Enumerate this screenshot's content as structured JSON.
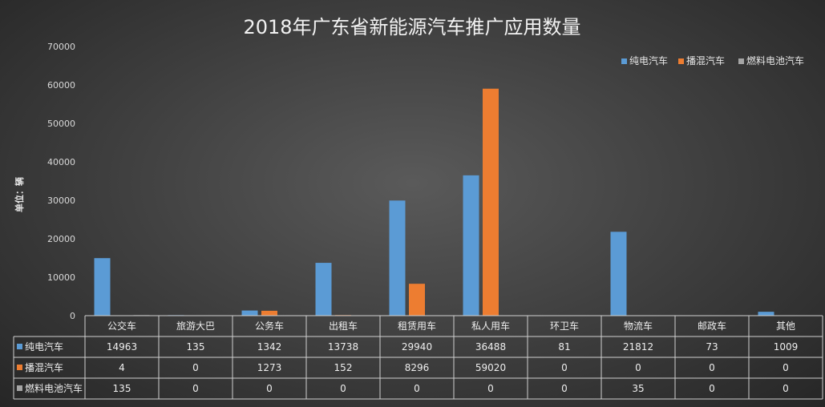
{
  "chart_data": {
    "type": "bar",
    "title": "2018年广东省新能源汽车推广应用数量",
    "ylabel": "单位：辆",
    "ylim": [
      0,
      70000
    ],
    "yticks": [
      0,
      10000,
      20000,
      30000,
      40000,
      50000,
      60000,
      70000
    ],
    "legend_position": "top-right",
    "grid": false,
    "categories": [
      "公交车",
      "旅游大巴",
      "公务车",
      "出租车",
      "租赁用车",
      "私人用车",
      "环卫车",
      "物流车",
      "邮政车",
      "其他"
    ],
    "series": [
      {
        "name": "纯电汽车",
        "color": "#5b9bd5",
        "values": [
          14963,
          135,
          1342,
          13738,
          29940,
          36488,
          81,
          21812,
          73,
          1009
        ]
      },
      {
        "name": "播混汽车",
        "color": "#ed7d31",
        "values": [
          4,
          0,
          1273,
          152,
          8296,
          59020,
          0,
          0,
          0,
          0
        ]
      },
      {
        "name": "燃料电池汽车",
        "color": "#a5a5a5",
        "values": [
          135,
          0,
          0,
          0,
          0,
          0,
          0,
          35,
          0,
          0
        ]
      }
    ]
  }
}
